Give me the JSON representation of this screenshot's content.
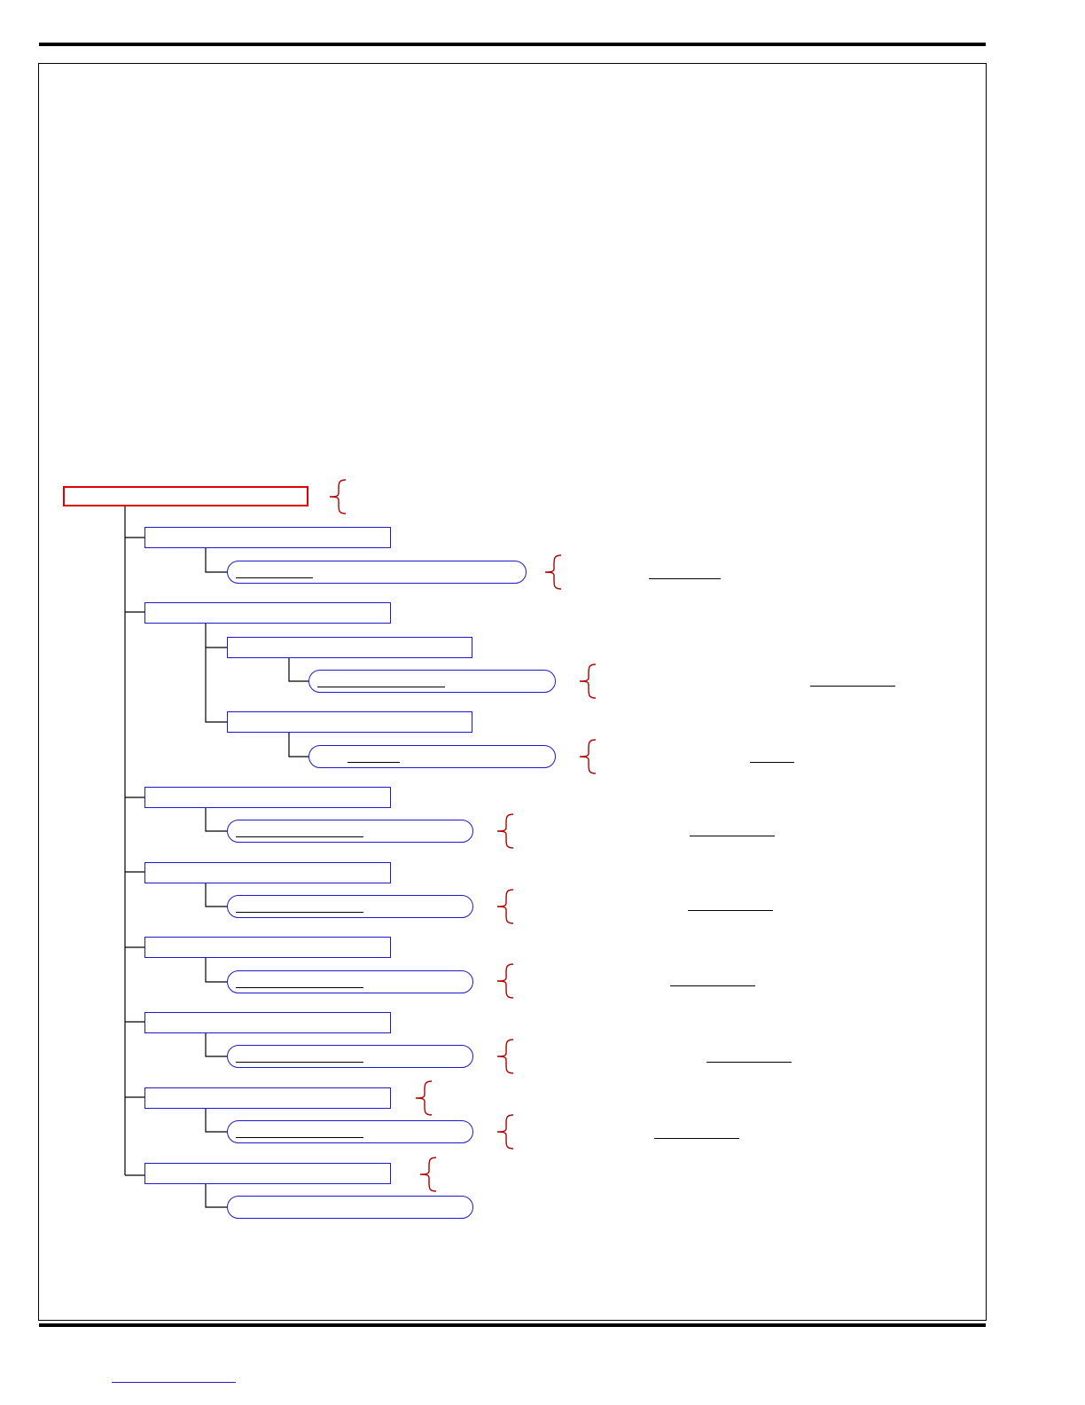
{
  "document": {
    "header_rule": true,
    "footer_rule": true
  },
  "tree": {
    "root": {
      "label": ""
    },
    "branches": [
      {
        "label": "",
        "children": [
          {
            "label": ""
          }
        ]
      },
      {
        "label": "",
        "children": [
          {
            "label": "",
            "children": [
              {
                "label": ""
              }
            ]
          },
          {
            "label": "",
            "children": [
              {
                "label": ""
              }
            ]
          }
        ]
      },
      {
        "label": "",
        "children": [
          {
            "label": ""
          }
        ]
      },
      {
        "label": "",
        "children": [
          {
            "label": ""
          }
        ]
      },
      {
        "label": "",
        "children": [
          {
            "label": ""
          }
        ]
      },
      {
        "label": "",
        "children": [
          {
            "label": ""
          }
        ]
      },
      {
        "label": "",
        "children": [
          {
            "label": ""
          }
        ]
      },
      {
        "label": "",
        "children": [
          {
            "label": ""
          }
        ]
      }
    ]
  },
  "colors": {
    "root_border": "#e00000",
    "node_border": "#1a1ac8",
    "brace": "#b00000",
    "connector": "#000000",
    "footer_link": "#2020c0"
  },
  "icons": {
    "annotation_brace": "left-curly-brace"
  },
  "footer": {
    "link_text": ""
  }
}
